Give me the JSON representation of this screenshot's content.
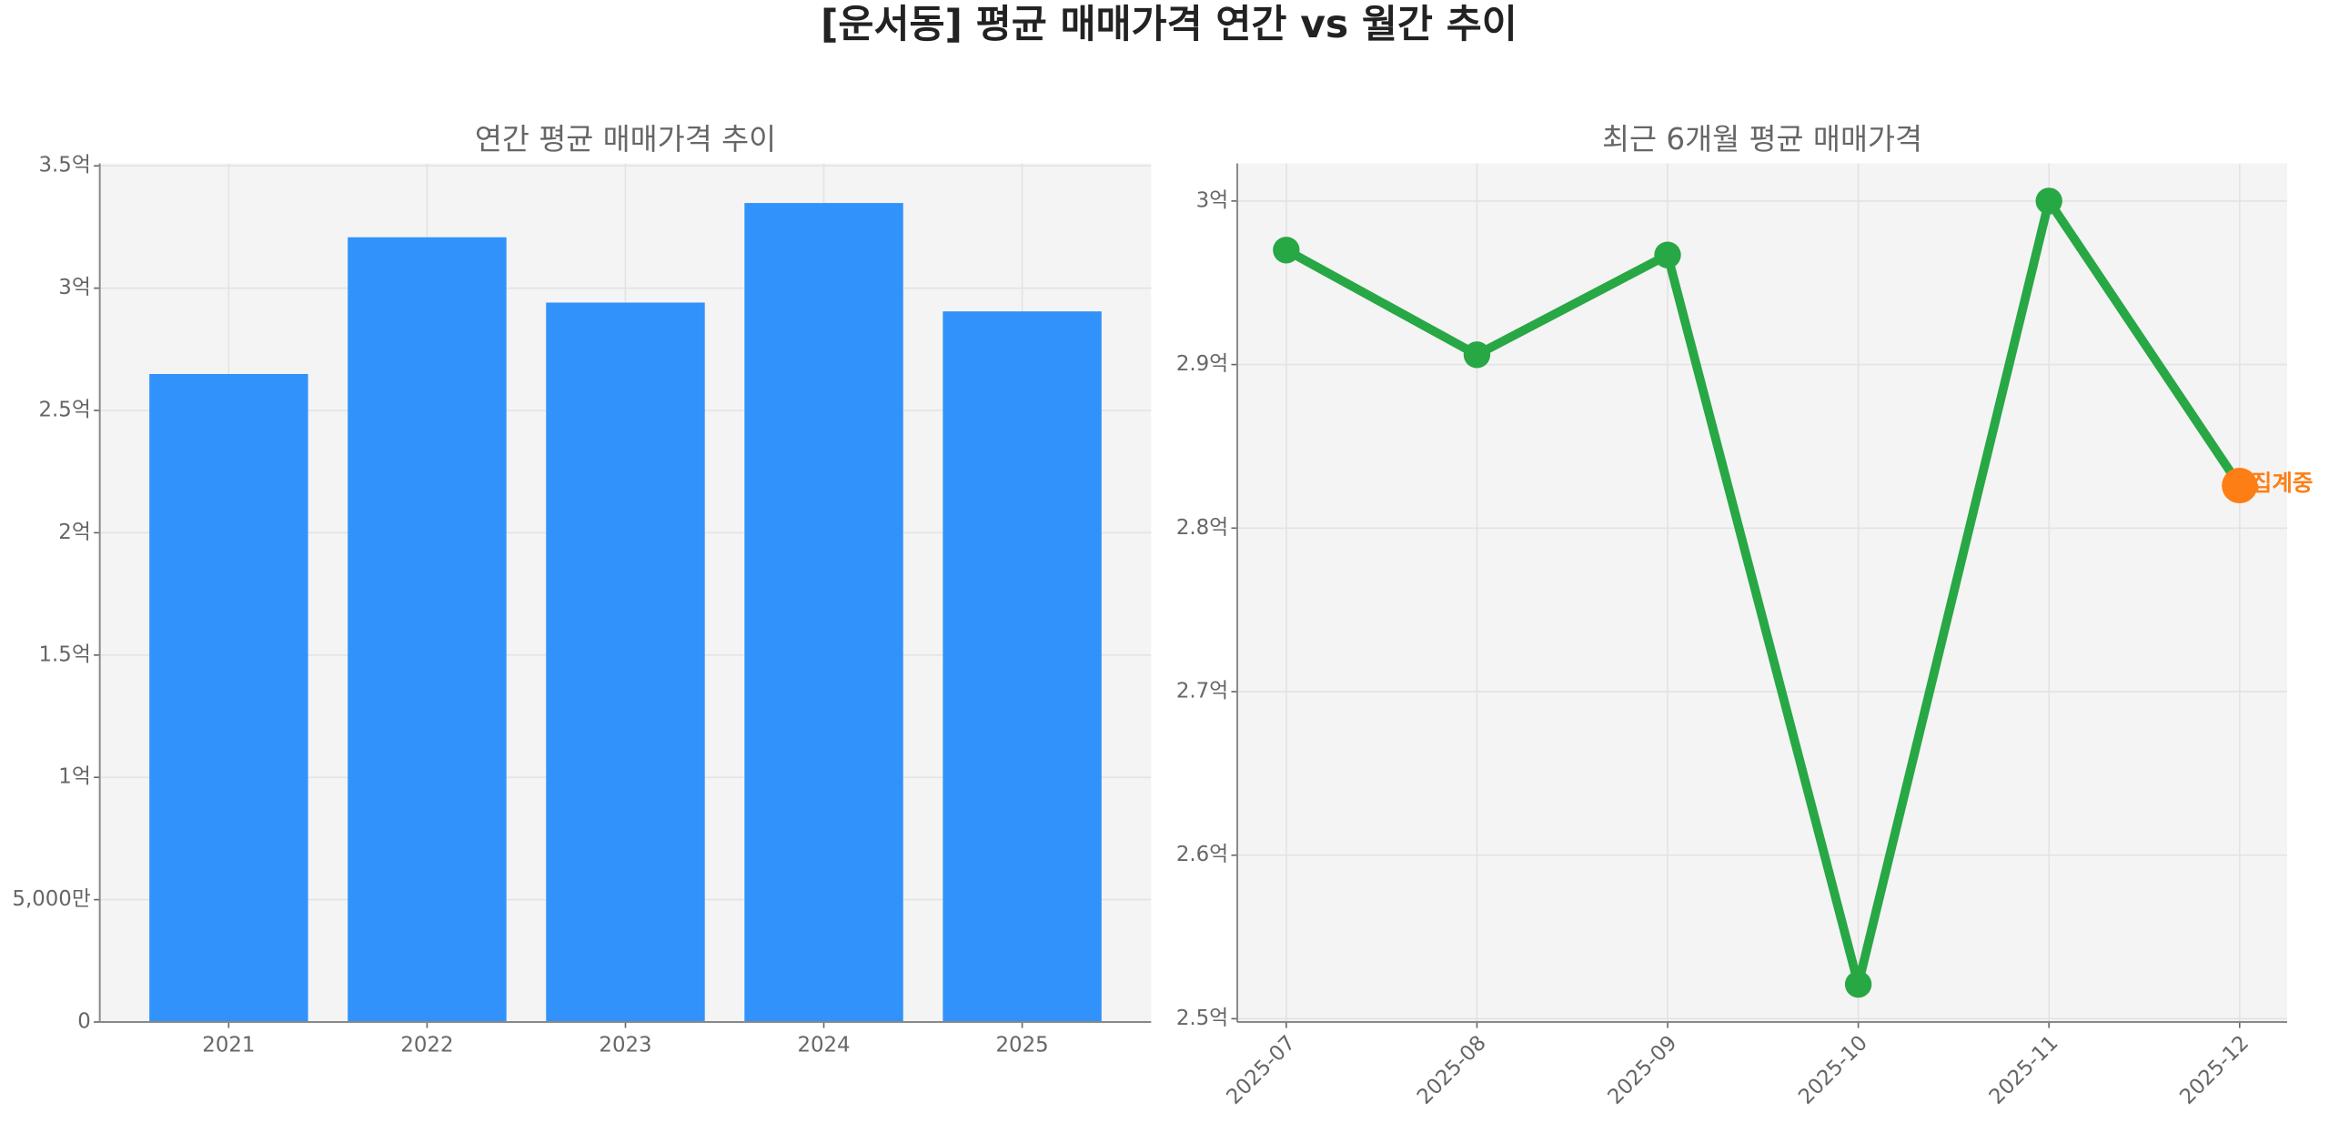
{
  "title": "[운서동] 평균 매매가격 연간 vs 월간 추이",
  "chart_data": [
    {
      "type": "bar",
      "title": "연간 평균 매매가격 추이",
      "categories": [
        "2021",
        "2022",
        "2023",
        "2024",
        "2025"
      ],
      "values": [
        2.649,
        3.208,
        2.941,
        3.348,
        2.905
      ],
      "color": "#3192fb",
      "ylim": [
        0,
        3.51
      ],
      "yticks": [
        0,
        {
          "value": 0.5,
          "label": "5,000만"
        },
        {
          "value": 1,
          "label": "1억"
        },
        {
          "value": 1.5,
          "label": "1.5억"
        },
        {
          "value": 2,
          "label": "2억"
        },
        {
          "value": 2.5,
          "label": "2.5억"
        },
        {
          "value": 3,
          "label": "3억"
        },
        {
          "value": 3.5,
          "label": "3.5억"
        }
      ],
      "grid": true
    },
    {
      "type": "line",
      "title": "최근 6개월 평균 매매가격",
      "categories": [
        "2025-07",
        "2025-08",
        "2025-09",
        "2025-10",
        "2025-11",
        "2025-12"
      ],
      "values": [
        2.97,
        2.906,
        2.967,
        2.521,
        3.0,
        2.826
      ],
      "color": "#28a745",
      "ylim": [
        2.498,
        3.023
      ],
      "yticks": [
        {
          "value": 2.5,
          "label": "2.5억"
        },
        {
          "value": 2.6,
          "label": "2.6억"
        },
        {
          "value": 2.7,
          "label": "2.7억"
        },
        {
          "value": 2.8,
          "label": "2.8억"
        },
        {
          "value": 2.9,
          "label": "2.9억"
        },
        {
          "value": 3,
          "label": "3억"
        }
      ],
      "grid": true,
      "annotation": {
        "text": "집계중",
        "color": "#fd7e14"
      }
    }
  ]
}
